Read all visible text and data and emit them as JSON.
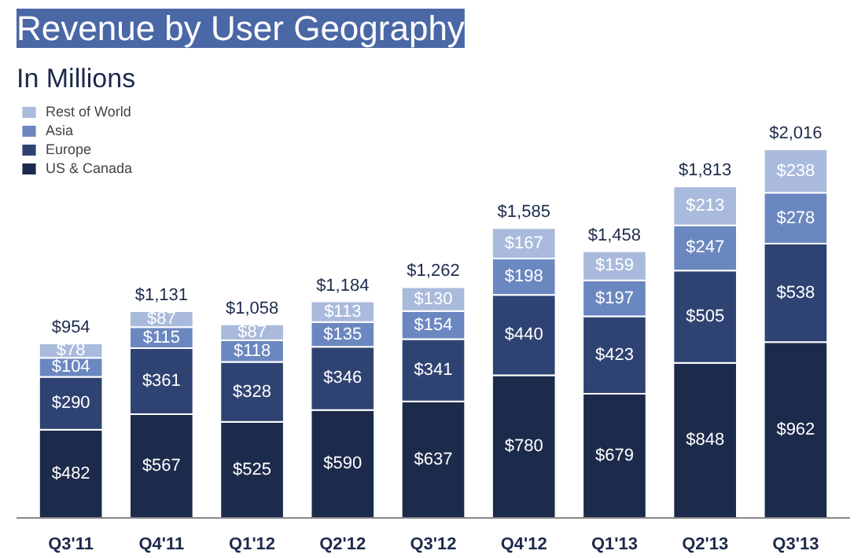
{
  "chart_data": {
    "type": "bar",
    "title": "Revenue by User Geography",
    "subtitle": "In Millions",
    "stacked": true,
    "legend": "top left",
    "grid": false,
    "categories": [
      "Q3'11",
      "Q4'11",
      "Q1'12",
      "Q2'12",
      "Q3'12",
      "Q4'12",
      "Q1'13",
      "Q2'13",
      "Q3'13"
    ],
    "series": [
      {
        "name": "US & Canada",
        "color": "#1c2a4b",
        "values": [
          482,
          567,
          525,
          590,
          637,
          780,
          679,
          848,
          962
        ],
        "value_labels": [
          "$482",
          "$567",
          "$525",
          "$590",
          "$637",
          "$780",
          "$679",
          "$848",
          "$962"
        ]
      },
      {
        "name": "Europe",
        "color": "#2f4372",
        "values": [
          290,
          361,
          328,
          346,
          341,
          440,
          423,
          505,
          538
        ],
        "value_labels": [
          "$290",
          "$361",
          "$328",
          "$346",
          "$341",
          "$440",
          "$423",
          "$505",
          "$538"
        ]
      },
      {
        "name": "Asia",
        "color": "#6b87c0",
        "values": [
          104,
          115,
          118,
          135,
          154,
          198,
          197,
          247,
          278
        ],
        "value_labels": [
          "$104",
          "$115",
          "$118",
          "$135",
          "$154",
          "$198",
          "$197",
          "$247",
          "$278"
        ]
      },
      {
        "name": "Rest of World",
        "color": "#a9badc",
        "values": [
          78,
          87,
          87,
          113,
          130,
          167,
          159,
          213,
          238
        ],
        "value_labels": [
          "$78",
          "$87",
          "$87",
          "$113",
          "$130",
          "$167",
          "$159",
          "$213",
          "$238"
        ]
      }
    ],
    "totals": [
      "$954",
      "$1,131",
      "$1,058",
      "$1,184",
      "$1,262",
      "$1,585",
      "$1,458",
      "$1,813",
      "$2,016"
    ]
  }
}
